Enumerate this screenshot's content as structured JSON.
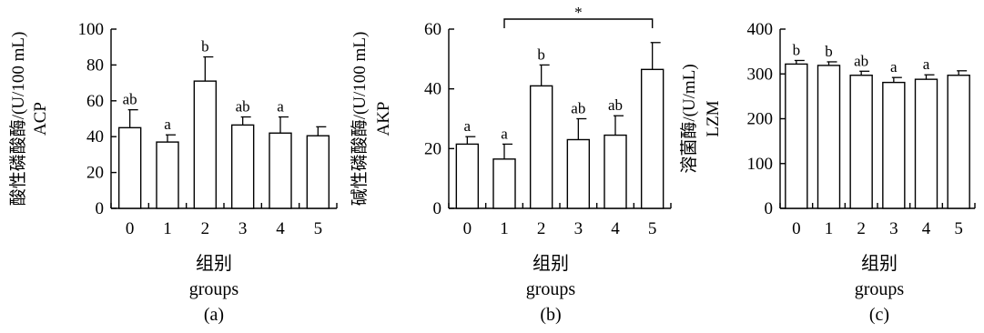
{
  "chart_data": [
    {
      "type": "bar",
      "panel_label": "(a)",
      "ylabel_cn": "酸性磷酸酶/(U/100 mL)",
      "ylabel_en": "ACP",
      "xlabel_cn": "组别",
      "xlabel_en": "groups",
      "categories": [
        "0",
        "1",
        "2",
        "3",
        "4",
        "5"
      ],
      "values": [
        45,
        37,
        71,
        46.5,
        42,
        40.5
      ],
      "errors": [
        10,
        4,
        13.5,
        4.5,
        9,
        5
      ],
      "labels": [
        "ab",
        "a",
        "b",
        "ab",
        "a",
        ""
      ],
      "ylim": [
        0,
        100
      ],
      "yticks": [
        "0",
        "20",
        "40",
        "60",
        "80",
        "100"
      ]
    },
    {
      "type": "bar",
      "panel_label": "(b)",
      "ylabel_cn": "碱性磷酸酶/(U/100 mL)",
      "ylabel_en": "AKP",
      "xlabel_cn": "组别",
      "xlabel_en": "groups",
      "categories": [
        "0",
        "1",
        "2",
        "3",
        "4",
        "5"
      ],
      "values": [
        21.5,
        16.5,
        41,
        23,
        24.5,
        46.5
      ],
      "errors": [
        2.5,
        5,
        7,
        7,
        6.5,
        9
      ],
      "labels": [
        "a",
        "a",
        "b",
        "ab",
        "ab",
        ""
      ],
      "ylim": [
        0,
        60
      ],
      "yticks": [
        "0",
        "20",
        "40",
        "60"
      ],
      "bracket": {
        "from": 1,
        "to": 5,
        "label": "*"
      }
    },
    {
      "type": "bar",
      "panel_label": "(c)",
      "ylabel_cn": "溶菌酶/(U/mL)",
      "ylabel_en": "LZM",
      "xlabel_cn": "组别",
      "xlabel_en": "groups",
      "categories": [
        "0",
        "1",
        "2",
        "3",
        "4",
        "5"
      ],
      "values": [
        322,
        319,
        297,
        281,
        288,
        297
      ],
      "errors": [
        8,
        8,
        9,
        11,
        10,
        10
      ],
      "labels": [
        "b",
        "b",
        "ab",
        "a",
        "a",
        ""
      ],
      "ylim": [
        0,
        400
      ],
      "yticks": [
        "0",
        "100",
        "200",
        "300",
        "400"
      ]
    }
  ]
}
